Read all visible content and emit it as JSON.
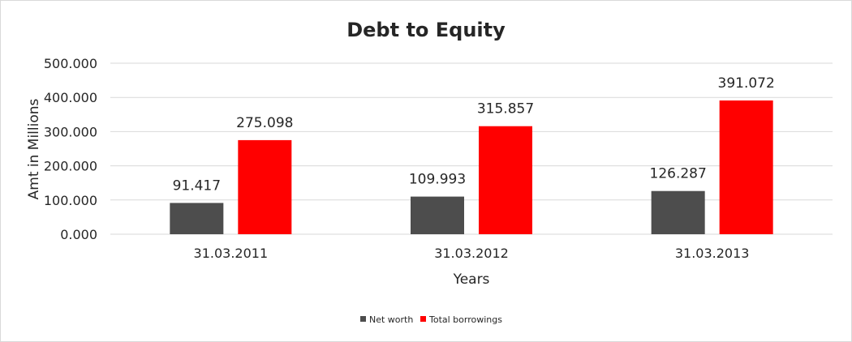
{
  "chart_data": {
    "type": "bar",
    "title": "Debt to Equity",
    "xlabel": "Years",
    "ylabel": "Amt in Millions",
    "categories": [
      "31.03.2011",
      "31.03.2012",
      "31.03.2013"
    ],
    "series": [
      {
        "name": "Net worth",
        "values": [
          91.417,
          109.993,
          126.287
        ],
        "labels": [
          "91.417",
          "109.993",
          "126.287"
        ],
        "color": "#4d4d4d"
      },
      {
        "name": "Total borrowings",
        "values": [
          275.098,
          315.857,
          391.072
        ],
        "labels": [
          "275.098",
          "315.857",
          "391.072"
        ],
        "color": "#ff0000"
      }
    ],
    "ylim": [
      0,
      500
    ],
    "yticks": [
      0,
      100,
      200,
      300,
      400,
      500
    ],
    "ytick_labels": [
      "0.000",
      "100.000",
      "200.000",
      "300.000",
      "400.000",
      "500.000"
    ],
    "grid": true,
    "legend_position": "bottom"
  }
}
